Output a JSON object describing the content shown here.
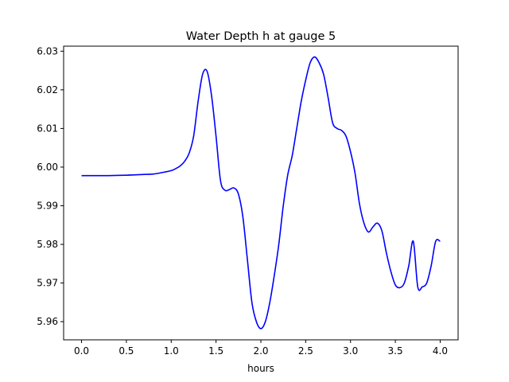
{
  "chart_data": {
    "type": "line",
    "title": "Water Depth h at gauge 5",
    "xlabel": "hours",
    "ylabel": "",
    "xlim": [
      -0.2,
      4.2
    ],
    "ylim": [
      5.9553,
      6.0313
    ],
    "xticks": [
      "0.0",
      "0.5",
      "1.0",
      "1.5",
      "2.0",
      "2.5",
      "3.0",
      "3.5",
      "4.0"
    ],
    "yticks": [
      "5.96",
      "5.97",
      "5.98",
      "5.99",
      "6.00",
      "6.01",
      "6.02",
      "6.03"
    ],
    "grid": false,
    "series": [
      {
        "color": "#0000ff",
        "x": [
          0.0,
          0.3,
          0.5,
          0.6,
          0.7,
          0.8,
          0.9,
          1.0,
          1.05,
          1.1,
          1.15,
          1.2,
          1.25,
          1.3,
          1.35,
          1.4,
          1.45,
          1.5,
          1.55,
          1.6,
          1.65,
          1.7,
          1.75,
          1.8,
          1.85,
          1.9,
          1.95,
          2.0,
          2.05,
          2.1,
          2.15,
          2.2,
          2.25,
          2.3,
          2.35,
          2.4,
          2.45,
          2.5,
          2.55,
          2.6,
          2.65,
          2.7,
          2.75,
          2.8,
          2.85,
          2.9,
          2.95,
          3.0,
          3.05,
          3.1,
          3.15,
          3.2,
          3.25,
          3.3,
          3.35,
          3.4,
          3.45,
          3.5,
          3.55,
          3.6,
          3.65,
          3.7,
          3.75,
          3.8,
          3.85,
          3.9,
          3.95,
          4.0
        ],
        "y": [
          5.9978,
          5.9978,
          5.9979,
          5.998,
          5.9981,
          5.9982,
          5.9986,
          5.9991,
          5.9996,
          6.0003,
          6.0015,
          6.0036,
          6.008,
          6.017,
          6.024,
          6.0248,
          6.0185,
          6.008,
          5.9965,
          5.994,
          5.9942,
          5.9946,
          5.993,
          5.987,
          5.976,
          5.965,
          5.96,
          5.9582,
          5.96,
          5.965,
          5.972,
          5.98,
          5.99,
          5.998,
          6.003,
          6.01,
          6.017,
          6.0225,
          6.027,
          6.0285,
          6.027,
          6.024,
          6.018,
          6.0115,
          6.01,
          6.0095,
          6.008,
          6.004,
          5.9985,
          5.9905,
          5.9855,
          5.9832,
          5.9845,
          5.9855,
          5.9835,
          5.9778,
          5.973,
          5.9695,
          5.9688,
          5.97,
          5.9745,
          5.9808,
          5.969,
          5.969,
          5.97,
          5.9745,
          5.9808,
          5.9808
        ]
      }
    ]
  }
}
